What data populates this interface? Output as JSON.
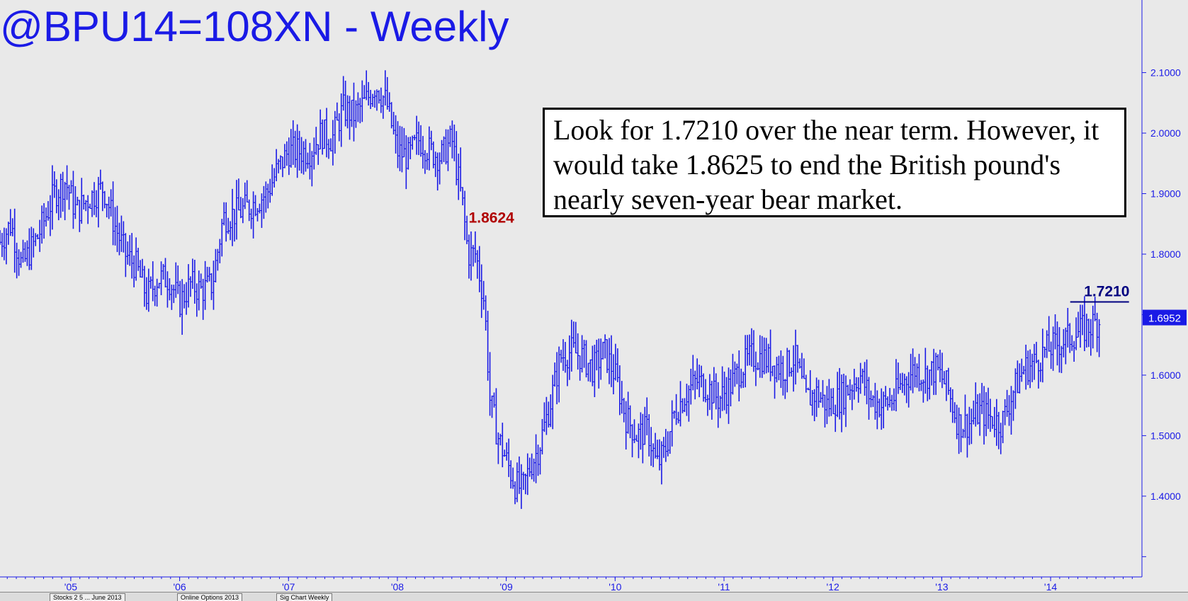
{
  "chart_data": {
    "type": "ohlc-bar",
    "title": "@BPU14=108XN - Weekly",
    "x_tick_labels": [
      "'05",
      "'06",
      "'07",
      "'08",
      "'09",
      "'10",
      "'11",
      "'12",
      "'13",
      "'14"
    ],
    "y_tick_labels": [
      "2.1000",
      "2.0000",
      "1.9000",
      "1.8000",
      "1.7000",
      "1.6000",
      "1.5000",
      "1.4000"
    ],
    "ylim": [
      1.27,
      2.22
    ],
    "xlim": [
      2004.35,
      2014.8
    ],
    "grid": false,
    "annotation": "Look for 1.7210 over the near term. However, it would take 1.8625 to end the British pound's nearly seven-year bear market.",
    "labels": [
      {
        "text": "1.8624",
        "x": 2008.72,
        "y": 1.8624,
        "color": "#b00000"
      },
      {
        "text": "1.7210",
        "x": 2014.45,
        "y": 1.721,
        "color": "#000080"
      }
    ],
    "target_line": {
      "y": 1.721,
      "x_start": 2014.18,
      "x_end": 2014.72,
      "color": "#000080"
    },
    "last_price": {
      "text": "1.6952",
      "value": 1.6952,
      "color": "#1a1ae6"
    },
    "series": [
      {
        "points": [
          [
            2004.35,
            1.82
          ],
          [
            2004.45,
            1.85
          ],
          [
            2004.55,
            1.78
          ],
          [
            2004.7,
            1.83
          ],
          [
            2004.85,
            1.9
          ],
          [
            2004.95,
            1.92
          ],
          [
            2005.05,
            1.87
          ],
          [
            2005.15,
            1.89
          ],
          [
            2005.3,
            1.91
          ],
          [
            2005.4,
            1.85
          ],
          [
            2005.5,
            1.8
          ],
          [
            2005.6,
            1.78
          ],
          [
            2005.7,
            1.73
          ],
          [
            2005.8,
            1.76
          ],
          [
            2005.9,
            1.76
          ],
          [
            2006.0,
            1.72
          ],
          [
            2006.1,
            1.75
          ],
          [
            2006.2,
            1.74
          ],
          [
            2006.3,
            1.75
          ],
          [
            2006.4,
            1.86
          ],
          [
            2006.55,
            1.87
          ],
          [
            2006.65,
            1.88
          ],
          [
            2006.8,
            1.9
          ],
          [
            2006.9,
            1.94
          ],
          [
            2007.0,
            1.97
          ],
          [
            2007.1,
            1.97
          ],
          [
            2007.2,
            1.97
          ],
          [
            2007.3,
            2.0
          ],
          [
            2007.4,
            1.99
          ],
          [
            2007.5,
            2.04
          ],
          [
            2007.6,
            2.03
          ],
          [
            2007.7,
            2.05
          ],
          [
            2007.8,
            2.08
          ],
          [
            2007.9,
            2.05
          ],
          [
            2008.0,
            1.97
          ],
          [
            2008.1,
            1.96
          ],
          [
            2008.2,
            1.99
          ],
          [
            2008.3,
            1.97
          ],
          [
            2008.4,
            1.96
          ],
          [
            2008.5,
            1.99
          ],
          [
            2008.6,
            1.88
          ],
          [
            2008.65,
            1.8
          ],
          [
            2008.72,
            1.8
          ],
          [
            2008.8,
            1.72
          ],
          [
            2008.85,
            1.56
          ],
          [
            2008.92,
            1.5
          ],
          [
            2009.0,
            1.46
          ],
          [
            2009.08,
            1.42
          ],
          [
            2009.15,
            1.41
          ],
          [
            2009.22,
            1.45
          ],
          [
            2009.3,
            1.48
          ],
          [
            2009.4,
            1.55
          ],
          [
            2009.5,
            1.63
          ],
          [
            2009.6,
            1.64
          ],
          [
            2009.7,
            1.63
          ],
          [
            2009.8,
            1.61
          ],
          [
            2009.9,
            1.64
          ],
          [
            2010.0,
            1.6
          ],
          [
            2010.1,
            1.53
          ],
          [
            2010.2,
            1.5
          ],
          [
            2010.3,
            1.51
          ],
          [
            2010.38,
            1.45
          ],
          [
            2010.45,
            1.47
          ],
          [
            2010.55,
            1.54
          ],
          [
            2010.65,
            1.57
          ],
          [
            2010.75,
            1.59
          ],
          [
            2010.85,
            1.58
          ],
          [
            2010.95,
            1.56
          ],
          [
            2011.05,
            1.58
          ],
          [
            2011.15,
            1.61
          ],
          [
            2011.25,
            1.63
          ],
          [
            2011.35,
            1.63
          ],
          [
            2011.45,
            1.62
          ],
          [
            2011.55,
            1.61
          ],
          [
            2011.65,
            1.63
          ],
          [
            2011.75,
            1.56
          ],
          [
            2011.85,
            1.57
          ],
          [
            2011.95,
            1.55
          ],
          [
            2012.05,
            1.56
          ],
          [
            2012.15,
            1.58
          ],
          [
            2012.25,
            1.6
          ],
          [
            2012.35,
            1.56
          ],
          [
            2012.45,
            1.55
          ],
          [
            2012.55,
            1.56
          ],
          [
            2012.65,
            1.59
          ],
          [
            2012.75,
            1.61
          ],
          [
            2012.85,
            1.6
          ],
          [
            2012.95,
            1.61
          ],
          [
            2013.05,
            1.58
          ],
          [
            2013.15,
            1.52
          ],
          [
            2013.25,
            1.52
          ],
          [
            2013.35,
            1.54
          ],
          [
            2013.45,
            1.53
          ],
          [
            2013.55,
            1.52
          ],
          [
            2013.65,
            1.57
          ],
          [
            2013.75,
            1.61
          ],
          [
            2013.85,
            1.62
          ],
          [
            2013.95,
            1.64
          ],
          [
            2014.05,
            1.65
          ],
          [
            2014.15,
            1.66
          ],
          [
            2014.25,
            1.67
          ],
          [
            2014.35,
            1.68
          ],
          [
            2014.45,
            1.69
          ]
        ]
      }
    ]
  },
  "status_strip": {
    "tabs": [
      "Stocks 2 5 ... June 2013",
      "Online Options 2013",
      "Sig Chart Weekly"
    ]
  }
}
